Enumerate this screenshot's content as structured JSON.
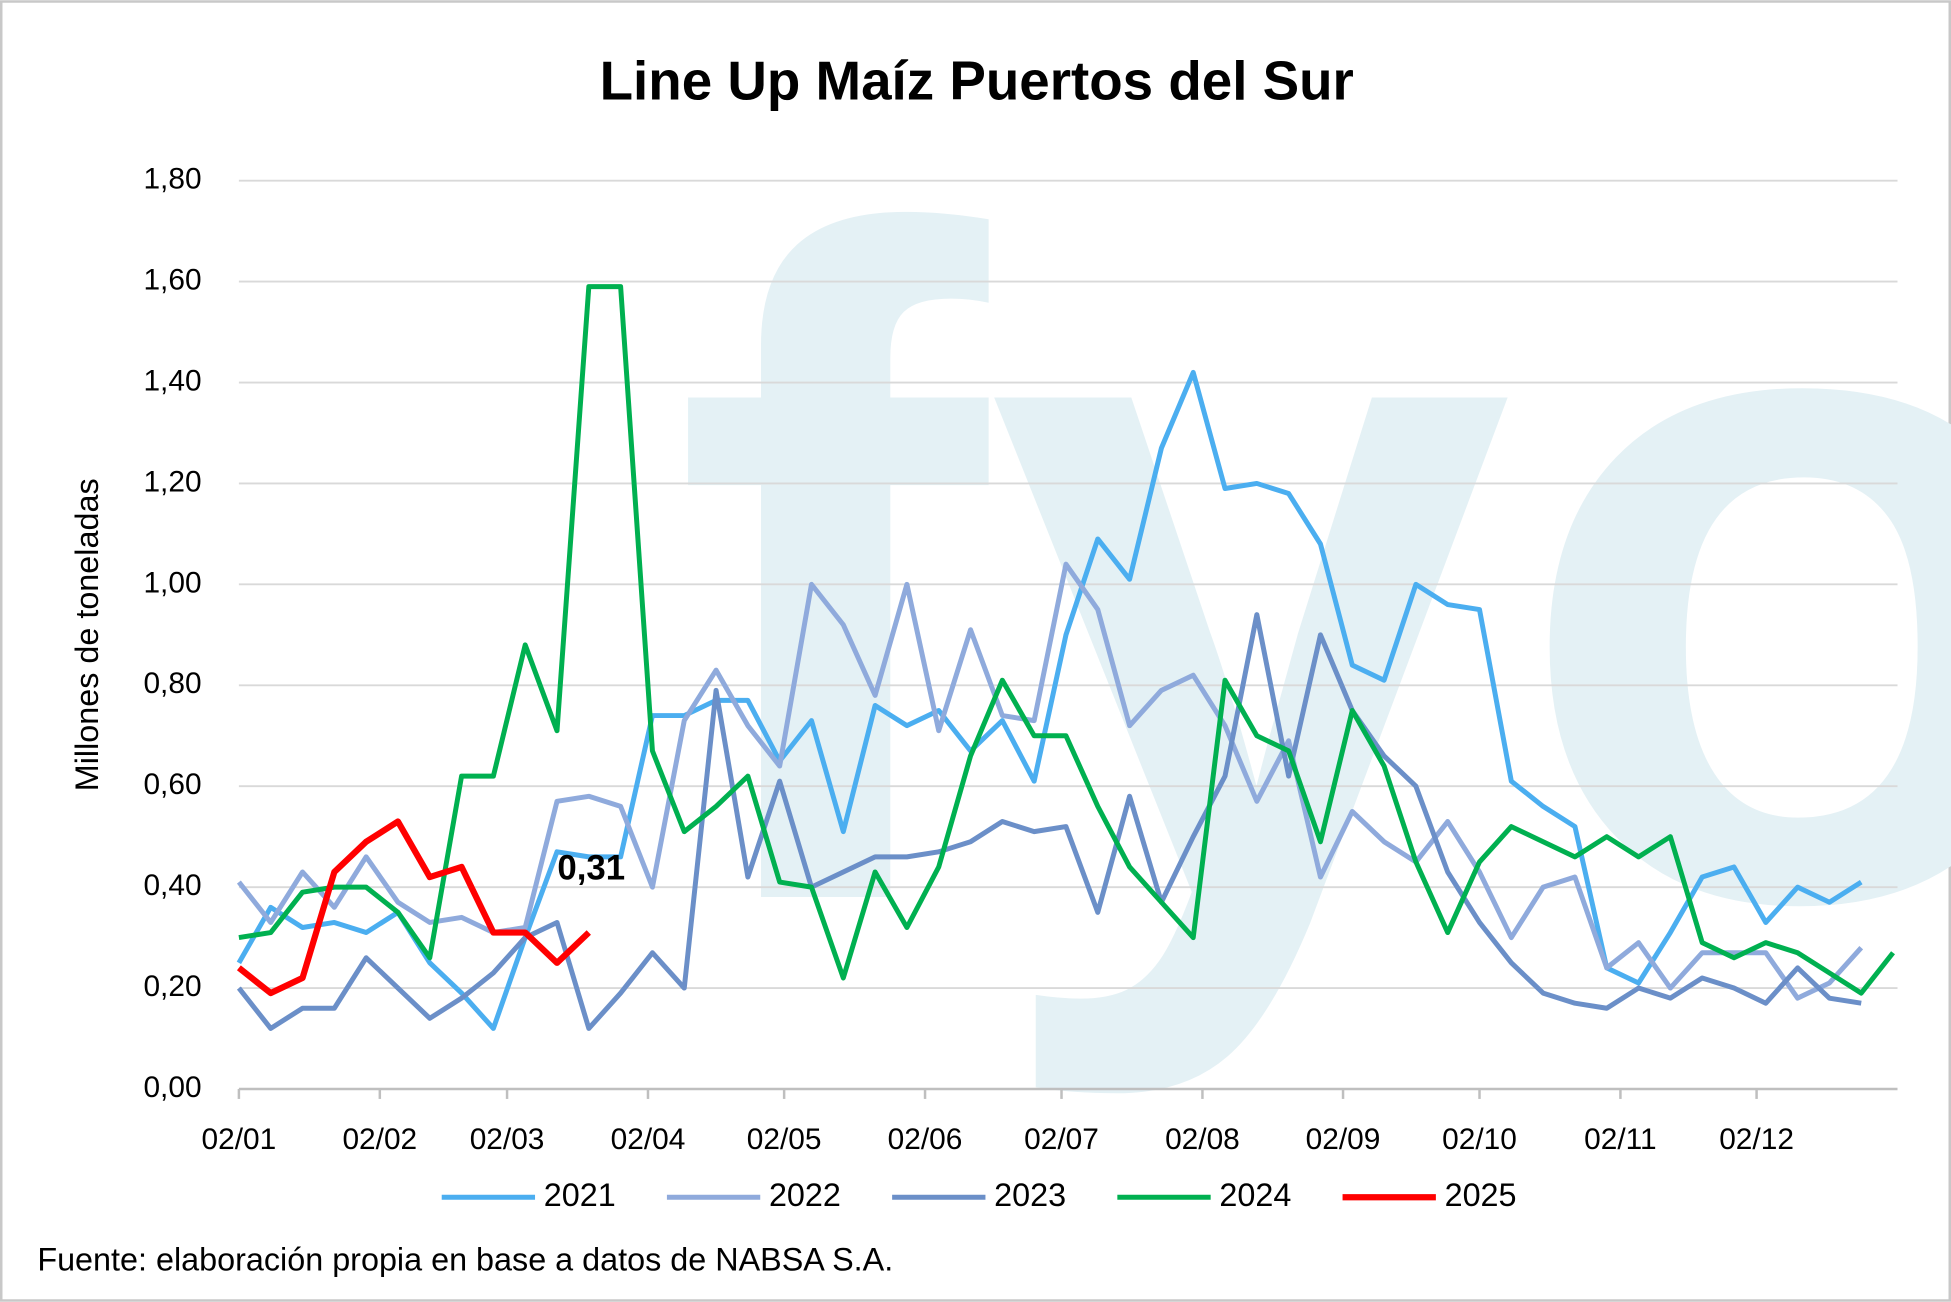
{
  "chart_data": {
    "type": "line",
    "title": "Line Up Maíz Puertos del Sur",
    "y_label": "Millones de toneladas",
    "source": "Fuente: elaboración propia en base a datos de NABSA S.A.",
    "watermark": "fyo",
    "grid": true,
    "legend": "bottom",
    "x": [
      0,
      1,
      2,
      3,
      4,
      5,
      6,
      7,
      8,
      9,
      10,
      11,
      12,
      13,
      14,
      15,
      16,
      17,
      18,
      19,
      20,
      21,
      22,
      23,
      24,
      25,
      26,
      27,
      28,
      29,
      30,
      31,
      32,
      33,
      34,
      35,
      36,
      37,
      38,
      39,
      40,
      41,
      42,
      43,
      44,
      45,
      46,
      47,
      48,
      49,
      50,
      51,
      52
    ],
    "xlim": [
      0,
      52.14
    ],
    "xticks": [
      {
        "value": 0,
        "label": "02/01"
      },
      {
        "value": 4.43,
        "label": "02/02"
      },
      {
        "value": 8.43,
        "label": "02/03"
      },
      {
        "value": 12.86,
        "label": "02/04"
      },
      {
        "value": 17.14,
        "label": "02/05"
      },
      {
        "value": 21.57,
        "label": "02/06"
      },
      {
        "value": 25.86,
        "label": "02/07"
      },
      {
        "value": 30.29,
        "label": "02/08"
      },
      {
        "value": 34.71,
        "label": "02/09"
      },
      {
        "value": 39,
        "label": "02/10"
      },
      {
        "value": 43.43,
        "label": "02/11"
      },
      {
        "value": 47.71,
        "label": "02/12"
      }
    ],
    "ylim": [
      0,
      1.8
    ],
    "yticks": [
      {
        "value": 0,
        "label": "0,00"
      },
      {
        "value": 0.2,
        "label": "0,20"
      },
      {
        "value": 0.4,
        "label": "0,40"
      },
      {
        "value": 0.6,
        "label": "0,60"
      },
      {
        "value": 0.8,
        "label": "0,80"
      },
      {
        "value": 1.0,
        "label": "1,00"
      },
      {
        "value": 1.2,
        "label": "1,20"
      },
      {
        "value": 1.4,
        "label": "1,40"
      },
      {
        "value": 1.6,
        "label": "1,60"
      },
      {
        "value": 1.8,
        "label": "1,80"
      }
    ],
    "series": [
      {
        "name": "2021",
        "color": "#4baef0",
        "values": [
          0.25,
          0.36,
          0.32,
          0.33,
          0.31,
          0.35,
          0.25,
          0.19,
          0.12,
          0.3,
          0.47,
          0.46,
          0.46,
          0.74,
          0.74,
          0.77,
          0.77,
          0.65,
          0.73,
          0.51,
          0.76,
          0.72,
          0.75,
          0.67,
          0.73,
          0.61,
          0.9,
          1.09,
          1.01,
          1.27,
          1.42,
          1.19,
          1.2,
          1.18,
          1.08,
          0.84,
          0.81,
          1.0,
          0.96,
          0.95,
          0.61,
          0.56,
          0.52,
          0.24,
          0.21,
          0.31,
          0.42,
          0.44,
          0.33,
          0.4,
          0.37,
          0.41,
          null
        ]
      },
      {
        "name": "2022",
        "color": "#8faadc",
        "values": [
          0.41,
          0.33,
          0.43,
          0.36,
          0.46,
          0.37,
          0.33,
          0.34,
          0.31,
          0.32,
          0.57,
          0.58,
          0.56,
          0.4,
          0.73,
          0.83,
          0.72,
          0.64,
          1.0,
          0.92,
          0.78,
          1.0,
          0.71,
          0.91,
          0.74,
          0.73,
          1.04,
          0.95,
          0.72,
          0.79,
          0.82,
          0.72,
          0.57,
          0.69,
          0.42,
          0.55,
          0.49,
          0.45,
          0.53,
          0.43,
          0.3,
          0.4,
          0.42,
          0.24,
          0.29,
          0.2,
          0.27,
          0.27,
          0.27,
          0.18,
          0.21,
          0.28,
          null
        ]
      },
      {
        "name": "2023",
        "color": "#6b8fc8",
        "values": [
          0.2,
          0.12,
          0.16,
          0.16,
          0.26,
          0.2,
          0.14,
          0.18,
          0.23,
          0.3,
          0.33,
          0.12,
          0.19,
          0.27,
          0.2,
          0.79,
          0.42,
          0.61,
          0.4,
          0.43,
          0.46,
          0.46,
          0.47,
          0.49,
          0.53,
          0.51,
          0.52,
          0.35,
          0.58,
          0.37,
          0.5,
          0.62,
          0.94,
          0.62,
          0.9,
          0.75,
          0.66,
          0.6,
          0.43,
          0.33,
          0.25,
          0.19,
          0.17,
          0.16,
          0.2,
          0.18,
          0.22,
          0.2,
          0.17,
          0.24,
          0.18,
          0.17,
          null
        ]
      },
      {
        "name": "2024",
        "color": "#00b050",
        "values": [
          0.3,
          0.31,
          0.39,
          0.4,
          0.4,
          0.35,
          0.26,
          0.62,
          0.62,
          0.88,
          0.71,
          1.59,
          1.59,
          0.67,
          0.51,
          0.56,
          0.62,
          0.41,
          0.4,
          0.22,
          0.43,
          0.32,
          0.44,
          0.66,
          0.81,
          0.7,
          0.7,
          0.56,
          0.44,
          0.37,
          0.3,
          0.81,
          0.7,
          0.67,
          0.49,
          0.75,
          0.64,
          0.45,
          0.31,
          0.45,
          0.52,
          0.49,
          0.46,
          0.5,
          0.46,
          0.5,
          0.29,
          0.26,
          0.29,
          0.27,
          0.23,
          0.19,
          0.27
        ]
      },
      {
        "name": "2025",
        "color": "#ff0000",
        "values": [
          0.24,
          0.19,
          0.22,
          0.43,
          0.49,
          0.53,
          0.42,
          0.44,
          0.31,
          0.31,
          0.25,
          0.31,
          null,
          null,
          null,
          null,
          null,
          null,
          null,
          null,
          null,
          null,
          null,
          null,
          null,
          null,
          null,
          null,
          null,
          null,
          null,
          null,
          null,
          null,
          null,
          null,
          null,
          null,
          null,
          null,
          null,
          null,
          null,
          null,
          null,
          null,
          null,
          null,
          null,
          null,
          null,
          null,
          null
        ],
        "value_labels": [
          null,
          null,
          null,
          null,
          null,
          null,
          null,
          null,
          null,
          null,
          null,
          "0,31",
          null,
          null,
          null,
          null,
          null,
          null,
          null,
          null,
          null,
          null,
          null,
          null,
          null,
          null,
          null,
          null,
          null,
          null,
          null,
          null,
          null,
          null,
          null,
          null,
          null,
          null,
          null,
          null,
          null,
          null,
          null,
          null,
          null,
          null,
          null,
          null,
          null,
          null,
          null,
          null,
          null
        ]
      }
    ]
  }
}
